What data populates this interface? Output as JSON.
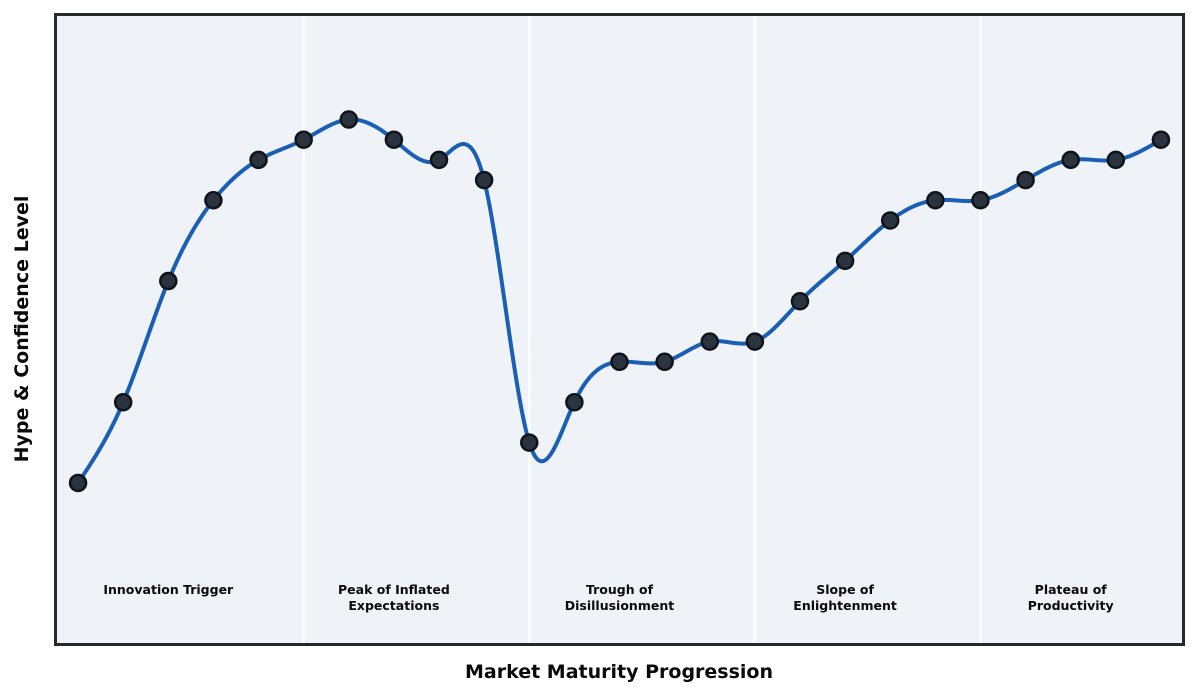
{
  "chart_data": {
    "type": "line",
    "title": "",
    "xlabel": "Market Maturity Progression",
    "ylabel": "Hype & Confidence Level",
    "curve": "cubic-spline",
    "grid": false,
    "legend": null,
    "x": [
      0,
      1,
      2,
      3,
      4,
      5,
      6,
      7,
      8,
      9,
      10,
      11,
      12,
      13,
      14,
      15,
      16,
      17,
      18,
      19,
      20,
      21,
      22,
      23,
      24
    ],
    "values": [
      5,
      25,
      55,
      75,
      85,
      90,
      95,
      90,
      85,
      80,
      15,
      25,
      35,
      35,
      40,
      40,
      50,
      60,
      70,
      75,
      75,
      80,
      85,
      85,
      90
    ],
    "xlim": [
      -0.5,
      24.5
    ],
    "ylim": [
      -35,
      121
    ],
    "phase_dividers_x": [
      5,
      10,
      15,
      20
    ],
    "phases": [
      {
        "label": "Innovation Trigger",
        "lines": [
          "Innovation Trigger"
        ],
        "x_center": 2,
        "x_range": [
          0,
          5
        ]
      },
      {
        "label": "Peak of Inflated Expectations",
        "lines": [
          "Peak of Inflated",
          "Expectations"
        ],
        "x_center": 7,
        "x_range": [
          5,
          10
        ]
      },
      {
        "label": "Trough of Disillusionment",
        "lines": [
          "Trough of",
          "Disillusionment"
        ],
        "x_center": 12,
        "x_range": [
          10,
          15
        ]
      },
      {
        "label": "Slope of Enlightenment",
        "lines": [
          "Slope of",
          "Enlightenment"
        ],
        "x_center": 17,
        "x_range": [
          15,
          20
        ]
      },
      {
        "label": "Plateau of Productivity",
        "lines": [
          "Plateau of",
          "Productivity"
        ],
        "x_center": 22,
        "x_range": [
          20,
          24
        ]
      }
    ],
    "colors": {
      "line": "#1a5fb4",
      "marker_face": "#2b333e",
      "marker_edge": "#0f141a",
      "plot_background": "#eff3f8",
      "divider": "#fbfcfe",
      "frame": "#26292e",
      "text": "#0a0a0a",
      "figure_background": "#ffffff"
    }
  }
}
